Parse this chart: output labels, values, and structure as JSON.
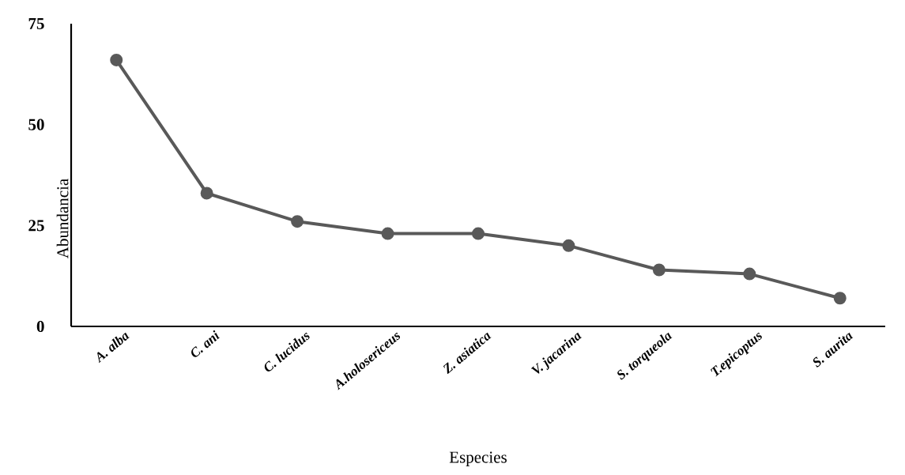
{
  "chart_data": {
    "type": "line",
    "xlabel": "Especies",
    "ylabel": "Abundancia",
    "categories": [
      "A. alba",
      "C. ani",
      "C. lucidus",
      "A.holosericeus",
      "Z. asiatica",
      "V. jacarina",
      "S. torqueola",
      "T.epicoptus",
      "S. aurita"
    ],
    "series": [
      {
        "color": "#595959",
        "values": [
          66,
          33,
          26,
          23,
          23,
          20,
          14,
          13,
          7
        ]
      }
    ],
    "ylim": [
      0,
      75
    ],
    "yticks": [
      0,
      25,
      50,
      75
    ],
    "marker": "circle",
    "line_style": "solid"
  }
}
